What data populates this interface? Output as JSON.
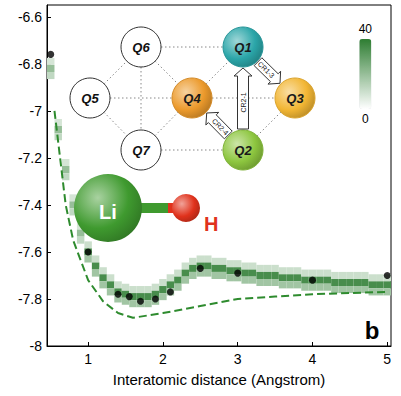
{
  "chart_data": {
    "type": "line",
    "x_label": "Interatomic distance (Angstrom)",
    "xlim": [
      0.45,
      5.05
    ],
    "xticks": [
      1,
      2,
      3,
      4,
      5
    ],
    "ylim": [
      -8,
      -6.55
    ],
    "yticks": [
      -8,
      -7.8,
      -7.6,
      -7.4,
      -7.2,
      -7,
      -6.8,
      -6.6
    ],
    "series": [
      {
        "type": "scatter",
        "color": "#000000",
        "marker": "circle",
        "x": [
          0.5,
          1,
          1.4,
          1.55,
          1.7,
          1.9,
          2.1,
          2.5,
          3,
          4,
          5
        ],
        "values": [
          -6.76,
          -7.6,
          -7.78,
          -7.79,
          -7.81,
          -7.8,
          -7.77,
          -7.67,
          -7.69,
          -7.72,
          -7.7
        ]
      },
      {
        "type": "line",
        "color": "#2e8b2e",
        "line_style": "dashed",
        "x": [
          0.55,
          0.7,
          0.8,
          1,
          1.2,
          1.4,
          1.6,
          1.8,
          2,
          2.5,
          3,
          3.5,
          4,
          5
        ],
        "values": [
          -7.0,
          -7.4,
          -7.55,
          -7.72,
          -7.81,
          -7.86,
          -7.88,
          -7.87,
          -7.86,
          -7.83,
          -7.8,
          -7.79,
          -7.78,
          -7.77
        ]
      }
    ],
    "heatmap": {
      "color": "#2e7d32",
      "clim": [
        0,
        40
      ],
      "cticks": [
        0,
        40
      ],
      "cell_size": [
        0.1,
        0.03
      ],
      "cells": [
        [
          0.5,
          -6.79,
          8
        ],
        [
          0.5,
          -6.82,
          20
        ],
        [
          0.5,
          -6.85,
          12
        ],
        [
          0.6,
          -7.05,
          8
        ],
        [
          0.6,
          -7.08,
          20
        ],
        [
          0.6,
          -7.11,
          12
        ],
        [
          0.7,
          -7.22,
          8
        ],
        [
          0.7,
          -7.25,
          20
        ],
        [
          0.7,
          -7.28,
          12
        ],
        [
          0.8,
          -7.37,
          8
        ],
        [
          0.8,
          -7.4,
          20
        ],
        [
          0.8,
          -7.43,
          12
        ],
        [
          0.9,
          -7.49,
          8
        ],
        [
          0.9,
          -7.52,
          20
        ],
        [
          0.9,
          -7.55,
          12
        ],
        [
          1.0,
          -7.57,
          10
        ],
        [
          1.0,
          -7.6,
          35
        ],
        [
          1.0,
          -7.63,
          18
        ],
        [
          1.1,
          -7.63,
          10
        ],
        [
          1.1,
          -7.66,
          35
        ],
        [
          1.1,
          -7.69,
          18
        ],
        [
          1.2,
          -7.68,
          10
        ],
        [
          1.2,
          -7.71,
          35
        ],
        [
          1.2,
          -7.74,
          18
        ],
        [
          1.3,
          -7.71,
          10
        ],
        [
          1.3,
          -7.74,
          35
        ],
        [
          1.3,
          -7.77,
          18
        ],
        [
          1.4,
          -7.74,
          10
        ],
        [
          1.4,
          -7.77,
          35
        ],
        [
          1.4,
          -7.8,
          18
        ],
        [
          1.5,
          -7.75,
          10
        ],
        [
          1.5,
          -7.78,
          35
        ],
        [
          1.5,
          -7.81,
          18
        ],
        [
          1.6,
          -7.76,
          10
        ],
        [
          1.6,
          -7.79,
          35
        ],
        [
          1.6,
          -7.82,
          18
        ],
        [
          1.7,
          -7.76,
          10
        ],
        [
          1.7,
          -7.79,
          35
        ],
        [
          1.7,
          -7.82,
          18
        ],
        [
          1.8,
          -7.76,
          10
        ],
        [
          1.8,
          -7.79,
          35
        ],
        [
          1.8,
          -7.82,
          18
        ],
        [
          1.9,
          -7.75,
          10
        ],
        [
          1.9,
          -7.78,
          35
        ],
        [
          1.9,
          -7.81,
          18
        ],
        [
          2.0,
          -7.73,
          10
        ],
        [
          2.0,
          -7.76,
          35
        ],
        [
          2.0,
          -7.79,
          18
        ],
        [
          2.1,
          -7.71,
          10
        ],
        [
          2.1,
          -7.74,
          35
        ],
        [
          2.1,
          -7.77,
          18
        ],
        [
          2.2,
          -7.69,
          10
        ],
        [
          2.2,
          -7.72,
          35
        ],
        [
          2.2,
          -7.75,
          18
        ],
        [
          2.3,
          -7.66,
          10
        ],
        [
          2.3,
          -7.69,
          35
        ],
        [
          2.3,
          -7.72,
          18
        ],
        [
          2.4,
          -7.64,
          10
        ],
        [
          2.4,
          -7.67,
          35
        ],
        [
          2.4,
          -7.7,
          18
        ],
        [
          2.5,
          -7.63,
          10
        ],
        [
          2.5,
          -7.66,
          35
        ],
        [
          2.5,
          -7.69,
          18
        ],
        [
          2.6,
          -7.63,
          10
        ],
        [
          2.6,
          -7.66,
          35
        ],
        [
          2.6,
          -7.69,
          18
        ],
        [
          2.7,
          -7.64,
          10
        ],
        [
          2.7,
          -7.67,
          35
        ],
        [
          2.7,
          -7.7,
          18
        ],
        [
          2.8,
          -7.64,
          10
        ],
        [
          2.8,
          -7.67,
          35
        ],
        [
          2.8,
          -7.7,
          18
        ],
        [
          2.9,
          -7.65,
          10
        ],
        [
          2.9,
          -7.68,
          35
        ],
        [
          2.9,
          -7.71,
          18
        ],
        [
          3.0,
          -7.65,
          10
        ],
        [
          3.0,
          -7.68,
          35
        ],
        [
          3.0,
          -7.71,
          18
        ],
        [
          3.1,
          -7.66,
          10
        ],
        [
          3.1,
          -7.69,
          35
        ],
        [
          3.1,
          -7.72,
          18
        ],
        [
          3.2,
          -7.66,
          10
        ],
        [
          3.2,
          -7.69,
          35
        ],
        [
          3.2,
          -7.72,
          18
        ],
        [
          3.3,
          -7.67,
          10
        ],
        [
          3.3,
          -7.7,
          35
        ],
        [
          3.3,
          -7.73,
          18
        ],
        [
          3.4,
          -7.67,
          10
        ],
        [
          3.4,
          -7.7,
          35
        ],
        [
          3.4,
          -7.73,
          18
        ],
        [
          3.5,
          -7.67,
          10
        ],
        [
          3.5,
          -7.7,
          35
        ],
        [
          3.5,
          -7.73,
          18
        ],
        [
          3.6,
          -7.68,
          10
        ],
        [
          3.6,
          -7.71,
          35
        ],
        [
          3.6,
          -7.74,
          18
        ],
        [
          3.7,
          -7.68,
          10
        ],
        [
          3.7,
          -7.71,
          35
        ],
        [
          3.7,
          -7.74,
          18
        ],
        [
          3.8,
          -7.68,
          10
        ],
        [
          3.8,
          -7.71,
          35
        ],
        [
          3.8,
          -7.74,
          18
        ],
        [
          3.9,
          -7.69,
          10
        ],
        [
          3.9,
          -7.72,
          35
        ],
        [
          3.9,
          -7.75,
          18
        ],
        [
          4.0,
          -7.69,
          10
        ],
        [
          4.0,
          -7.72,
          35
        ],
        [
          4.0,
          -7.75,
          18
        ],
        [
          4.1,
          -7.69,
          10
        ],
        [
          4.1,
          -7.72,
          35
        ],
        [
          4.1,
          -7.75,
          18
        ],
        [
          4.2,
          -7.69,
          10
        ],
        [
          4.2,
          -7.72,
          35
        ],
        [
          4.2,
          -7.75,
          18
        ],
        [
          4.3,
          -7.7,
          10
        ],
        [
          4.3,
          -7.73,
          35
        ],
        [
          4.3,
          -7.76,
          18
        ],
        [
          4.4,
          -7.7,
          10
        ],
        [
          4.4,
          -7.73,
          35
        ],
        [
          4.4,
          -7.76,
          18
        ],
        [
          4.5,
          -7.7,
          10
        ],
        [
          4.5,
          -7.73,
          35
        ],
        [
          4.5,
          -7.76,
          18
        ],
        [
          4.6,
          -7.7,
          10
        ],
        [
          4.6,
          -7.73,
          35
        ],
        [
          4.6,
          -7.76,
          18
        ],
        [
          4.7,
          -7.7,
          10
        ],
        [
          4.7,
          -7.73,
          35
        ],
        [
          4.7,
          -7.76,
          18
        ],
        [
          4.8,
          -7.71,
          10
        ],
        [
          4.8,
          -7.74,
          35
        ],
        [
          4.8,
          -7.77,
          18
        ],
        [
          4.9,
          -7.71,
          10
        ],
        [
          4.9,
          -7.74,
          35
        ],
        [
          4.9,
          -7.77,
          18
        ],
        [
          5.0,
          -7.71,
          10
        ],
        [
          5.0,
          -7.74,
          35
        ],
        [
          5.0,
          -7.77,
          18
        ]
      ]
    }
  },
  "inset": {
    "nodes": [
      {
        "label": "Q1",
        "color": "#2ba6a9"
      },
      {
        "label": "Q2",
        "color": "#8dc63f"
      },
      {
        "label": "Q3",
        "color": "#f2b634"
      },
      {
        "label": "Q4",
        "color": "#ec9a2c"
      },
      {
        "label": "Q5",
        "color": "#ffffff"
      },
      {
        "label": "Q6",
        "color": "#ffffff"
      },
      {
        "label": "Q7",
        "color": "#ffffff"
      }
    ],
    "links": [
      [
        "Q6",
        "Q1"
      ],
      [
        "Q5",
        "Q6"
      ],
      [
        "Q5",
        "Q7"
      ],
      [
        "Q6",
        "Q4"
      ],
      [
        "Q7",
        "Q4"
      ],
      [
        "Q7",
        "Q2"
      ],
      [
        "Q5",
        "Q4"
      ],
      [
        "Q4",
        "Q3"
      ],
      [
        "Q6",
        "Q7"
      ],
      [
        "Q2",
        "Q3"
      ],
      [
        "Q4",
        "Q1"
      ]
    ],
    "arrows": [
      {
        "from": "Q1",
        "to": "Q3",
        "label": "CR1-3"
      },
      {
        "from": "Q2",
        "to": "Q1",
        "label": "CR2-1"
      },
      {
        "from": "Q2",
        "to": "Q4",
        "label": "CR2-4"
      }
    ]
  },
  "molecule": {
    "atoms": [
      {
        "label": "Li",
        "color": "#3f9a2f"
      },
      {
        "label": "H",
        "color": "#e0321c"
      }
    ]
  },
  "panel_label": "b"
}
